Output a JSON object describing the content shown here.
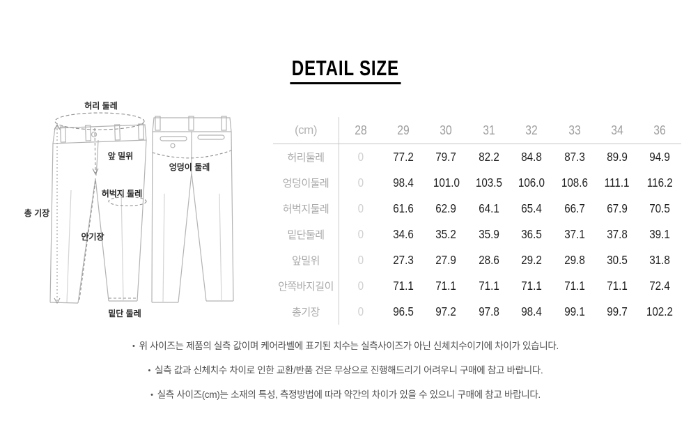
{
  "title": "DETAIL SIZE",
  "diagram": {
    "labels": {
      "waist": "허리 둘레",
      "front_rise": "앞 밀위",
      "hip": "엉덩이 둘레",
      "thigh": "허벅지 둘레",
      "total_length": "총 기장",
      "inner_length": "안기장",
      "hem": "밑단 둘레"
    }
  },
  "table": {
    "unit_label": "(cm)",
    "sizes": [
      "28",
      "29",
      "30",
      "31",
      "32",
      "33",
      "34",
      "36"
    ],
    "rows": [
      {
        "label": "허리둘레",
        "values": [
          "0",
          "77.2",
          "79.7",
          "82.2",
          "84.8",
          "87.3",
          "89.9",
          "94.9"
        ]
      },
      {
        "label": "엉덩이둘레",
        "values": [
          "0",
          "98.4",
          "101.0",
          "103.5",
          "106.0",
          "108.6",
          "111.1",
          "116.2"
        ]
      },
      {
        "label": "허벅지둘레",
        "values": [
          "0",
          "61.6",
          "62.9",
          "64.1",
          "65.4",
          "66.7",
          "67.9",
          "70.5"
        ]
      },
      {
        "label": "밑단둘레",
        "values": [
          "0",
          "34.6",
          "35.2",
          "35.9",
          "36.5",
          "37.1",
          "37.8",
          "39.1"
        ]
      },
      {
        "label": "앞밀위",
        "values": [
          "0",
          "27.3",
          "27.9",
          "28.6",
          "29.2",
          "29.8",
          "30.5",
          "31.8"
        ]
      },
      {
        "label": "안쪽바지길이",
        "values": [
          "0",
          "71.1",
          "71.1",
          "71.1",
          "71.1",
          "71.1",
          "71.1",
          "72.4"
        ]
      },
      {
        "label": "총기장",
        "values": [
          "0",
          "96.5",
          "97.2",
          "97.8",
          "98.4",
          "99.1",
          "99.7",
          "102.2"
        ]
      }
    ]
  },
  "notes_bullet": "•",
  "notes": [
    "위 사이즈는 제품의 실측 값이며 케어라벨에 표기된 치수는 실측사이즈가 아닌 신체치수이기에 차이가 있습니다.",
    "실측 값과 신체치수 차이로 인한 교환/반품 건은 무상으로 진행해드리기 어려우니 구매에 참고 바랍니다.",
    "실측 사이즈(cm)는 소재의 특성, 측정방법에 따라 약간의 차이가 있을 수 있으니 구매에 참고 바랍니다."
  ],
  "colors": {
    "accent_text": "#1f1f1f",
    "muted_text": "#a9a9a9",
    "zero_text": "#d0d0d0",
    "line": "#c9c9c9",
    "sketch_stroke": "#b3b3b3",
    "measure_stroke": "#8f8f8f"
  }
}
